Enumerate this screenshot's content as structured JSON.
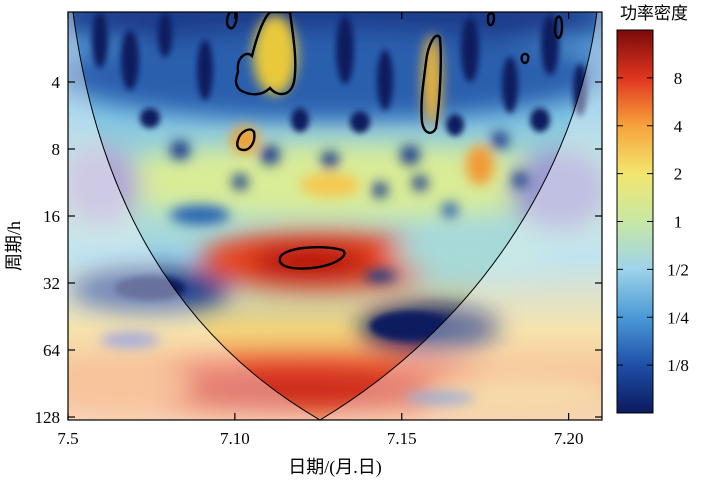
{
  "chart_data": {
    "type": "heatmap",
    "title": "",
    "subtitle": "",
    "xlabel": "日期/(月.日)",
    "ylabel": "周期/h",
    "x_ticks": [
      {
        "value": "7.5",
        "label": "7.5"
      },
      {
        "value": "7.10",
        "label": "7.10"
      },
      {
        "value": "7.15",
        "label": "7.15"
      },
      {
        "value": "7.20",
        "label": "7.20"
      }
    ],
    "x_range": [
      "7.5",
      "7.21"
    ],
    "y_scale": "log2",
    "y_reversed": true,
    "y_ticks": [
      4,
      8,
      16,
      32,
      64,
      128
    ],
    "y_range": [
      2,
      128
    ],
    "colorbar": {
      "title": "功率密度",
      "scale": "log2",
      "range": [
        0.0625,
        16
      ],
      "ticks": [
        {
          "value": 8,
          "label": "8"
        },
        {
          "value": 4,
          "label": "4"
        },
        {
          "value": 2,
          "label": "2"
        },
        {
          "value": 1,
          "label": "1"
        },
        {
          "value": 0.5,
          "label": "1/2"
        },
        {
          "value": 0.25,
          "label": "1/4"
        },
        {
          "value": 0.125,
          "label": "1/8"
        }
      ],
      "colors": [
        "#0b1a5e",
        "#1f4fa8",
        "#4a9ad6",
        "#9ed3ea",
        "#c7e8a4",
        "#f2e66e",
        "#f7a33c",
        "#e0351f",
        "#7a0a0a"
      ]
    },
    "cone_of_influence": true,
    "significance_contours": true,
    "notable_regions": [
      {
        "x": "7.12",
        "period": 24,
        "power": 16,
        "significant": true
      },
      {
        "x": "7.10",
        "period": 96,
        "power": 6
      },
      {
        "x": "7.14",
        "period": 52,
        "power": 0.0625
      },
      {
        "x": "7.07",
        "period": 30,
        "power": 0.125
      },
      {
        "x": "7.10",
        "period": 4.5,
        "power": 3,
        "significant": true
      },
      {
        "x": "7.16",
        "period": 4,
        "power": 2,
        "significant": true
      },
      {
        "x": "7.09",
        "period": 8.5,
        "power": 3,
        "significant": true
      }
    ]
  }
}
